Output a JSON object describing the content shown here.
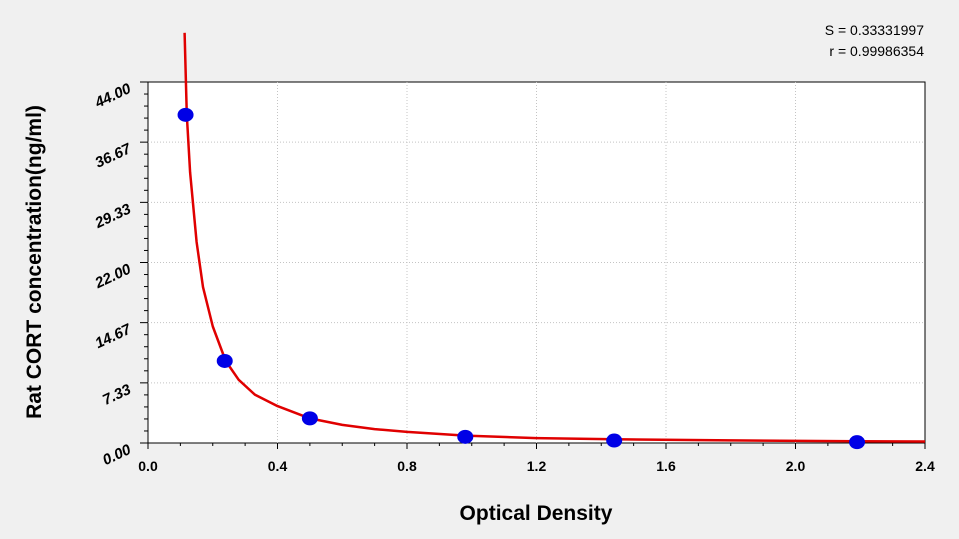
{
  "chart_data": {
    "type": "scatter",
    "xlabel": "Optical Density",
    "ylabel": "Rat CORT concentration(ng/ml)",
    "xlim": [
      0,
      2.4
    ],
    "ylim": [
      0,
      44
    ],
    "x_ticks": [
      "0.0",
      "0.4",
      "0.8",
      "1.2",
      "1.6",
      "2.0",
      "2.4"
    ],
    "x_tick_values": [
      0,
      0.4,
      0.8,
      1.2,
      1.6,
      2.0,
      2.4
    ],
    "y_ticks": [
      "0.00",
      "7.33",
      "14.67",
      "22.00",
      "29.33",
      "36.67",
      "44.00"
    ],
    "y_tick_values": [
      0,
      7.33,
      14.67,
      22.0,
      29.33,
      36.67,
      44.0
    ],
    "grid": true,
    "stats": [
      "S = 0.33331997",
      "r = 0.99986354"
    ],
    "points": [
      {
        "x": 0.116,
        "y": 40.0
      },
      {
        "x": 0.237,
        "y": 10.0
      },
      {
        "x": 0.5,
        "y": 3.0
      },
      {
        "x": 0.98,
        "y": 0.75
      },
      {
        "x": 1.44,
        "y": 0.3
      },
      {
        "x": 2.19,
        "y": 0.1
      }
    ],
    "fit_curve": [
      {
        "x": 0.113,
        "y": 50.0
      },
      {
        "x": 0.12,
        "y": 40.0
      },
      {
        "x": 0.13,
        "y": 33.0
      },
      {
        "x": 0.15,
        "y": 24.5
      },
      {
        "x": 0.17,
        "y": 19.0
      },
      {
        "x": 0.2,
        "y": 14.2
      },
      {
        "x": 0.24,
        "y": 10.0
      },
      {
        "x": 0.28,
        "y": 7.7
      },
      {
        "x": 0.33,
        "y": 5.9
      },
      {
        "x": 0.4,
        "y": 4.5
      },
      {
        "x": 0.5,
        "y": 3.0
      },
      {
        "x": 0.6,
        "y": 2.2
      },
      {
        "x": 0.7,
        "y": 1.7
      },
      {
        "x": 0.8,
        "y": 1.35
      },
      {
        "x": 0.98,
        "y": 0.9
      },
      {
        "x": 1.2,
        "y": 0.6
      },
      {
        "x": 1.44,
        "y": 0.45
      },
      {
        "x": 1.8,
        "y": 0.32
      },
      {
        "x": 2.19,
        "y": 0.22
      },
      {
        "x": 2.4,
        "y": 0.18
      }
    ],
    "point_color": "#0000e6",
    "curve_color": "#e00000",
    "grid_color": "#c4c4c4"
  }
}
